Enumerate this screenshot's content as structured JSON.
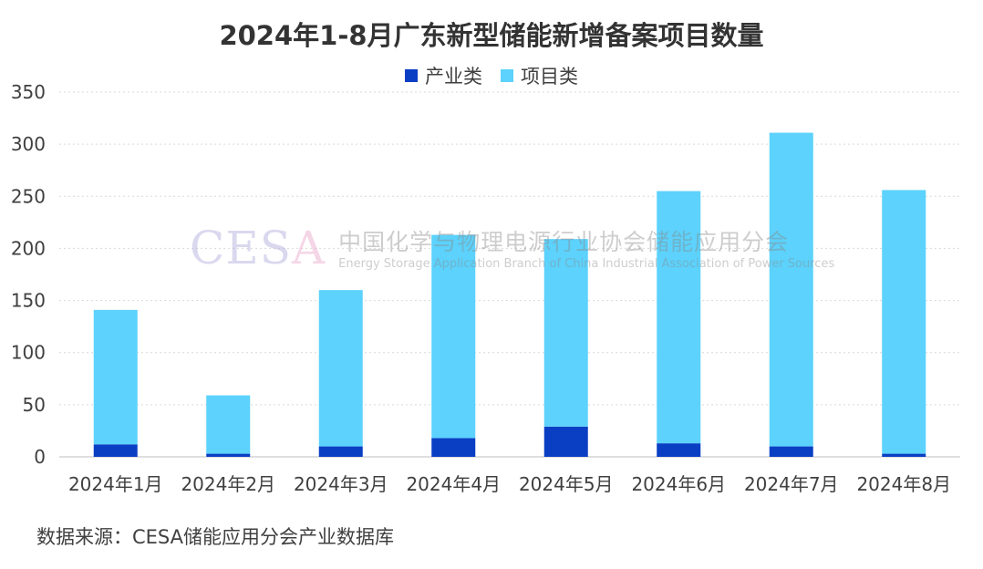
{
  "chart_data": {
    "type": "bar",
    "stacked": true,
    "title": "2024年1-8月广东新型储能新增备案项目数量",
    "categories": [
      "2024年1月",
      "2024年2月",
      "2024年3月",
      "2024年4月",
      "2024年5月",
      "2024年6月",
      "2024年7月",
      "2024年8月"
    ],
    "series": [
      {
        "name": "产业类",
        "color": "#0a3fc4",
        "values": [
          12,
          3,
          10,
          18,
          29,
          13,
          10,
          3
        ]
      },
      {
        "name": "项目类",
        "color": "#5cd2fc",
        "values": [
          129,
          56,
          150,
          195,
          180,
          242,
          301,
          253
        ]
      }
    ],
    "ylim": [
      0,
      350
    ],
    "yticks": [
      0,
      50,
      100,
      150,
      200,
      250,
      300,
      350
    ],
    "grid": true,
    "legend": "top-center",
    "source": "数据来源：CESA储能应用分会产业数据库"
  },
  "watermark": {
    "logo": "CESA",
    "name_cn": "中国化学与物理电源行业协会储能应用分会",
    "name_en": "Energy Storage Application Branch of China Industrial Association of Power Sources"
  }
}
